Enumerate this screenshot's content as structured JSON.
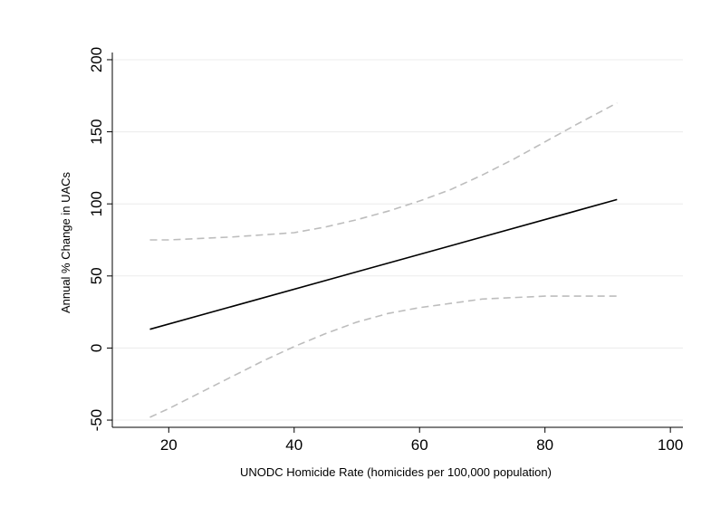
{
  "chart_data": {
    "type": "line",
    "title": "",
    "xlabel": "UNODC Homicide Rate (homicides per 100,000 population)",
    "ylabel": "Annual % Change in UACs",
    "xlim": [
      11,
      102
    ],
    "ylim": [
      -55,
      205
    ],
    "x_ticks": [
      20,
      40,
      60,
      80,
      100
    ],
    "y_ticks": [
      -50,
      0,
      50,
      100,
      150,
      200
    ],
    "grid": true,
    "legend": "none",
    "series": [
      {
        "role": "fit",
        "style": "solid",
        "color": "#000000",
        "x": [
          17,
          91.5
        ],
        "y": [
          13,
          103
        ]
      },
      {
        "role": "ci-upper",
        "style": "dashed",
        "color": "#bdbdbd",
        "x": [
          17,
          20,
          30,
          40,
          45,
          50,
          55,
          60,
          65,
          70,
          75,
          80,
          85,
          91.5
        ],
        "y": [
          75,
          75,
          77,
          80,
          84,
          89,
          95,
          102,
          110,
          120,
          131,
          143,
          155,
          170
        ]
      },
      {
        "role": "ci-lower",
        "style": "dashed",
        "color": "#bdbdbd",
        "x": [
          17,
          20,
          25,
          30,
          35,
          40,
          45,
          50,
          55,
          60,
          65,
          70,
          75,
          80,
          85,
          91.5
        ],
        "y": [
          -48,
          -42,
          -31,
          -20,
          -9,
          1,
          10,
          18,
          24,
          28,
          31,
          34,
          35,
          36,
          36,
          36
        ]
      }
    ]
  }
}
